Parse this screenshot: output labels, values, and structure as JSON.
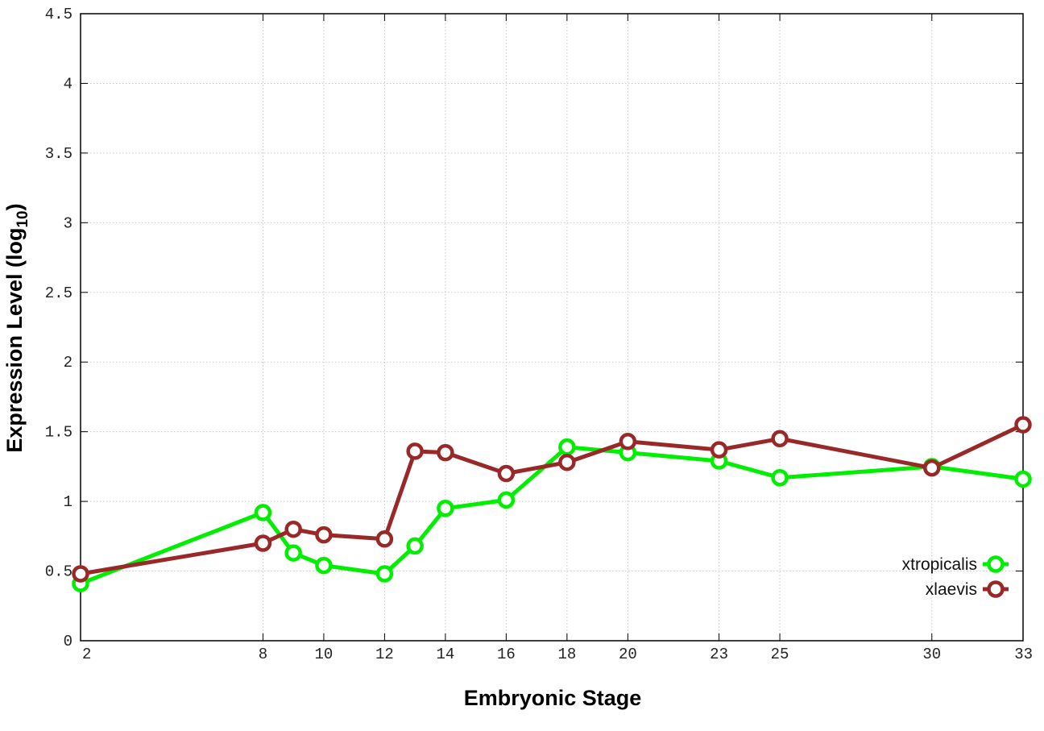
{
  "chart_data": {
    "type": "line",
    "xlabel": "Embryonic Stage",
    "ylabel_main": "Expression Level (log",
    "ylabel_sub": "10",
    "ylabel_close": ")",
    "xlim": [
      2,
      33
    ],
    "ylim": [
      0,
      4.5
    ],
    "grid": true,
    "legend_position": "bottom-right",
    "x_ticks": [
      2,
      8,
      10,
      12,
      14,
      16,
      18,
      20,
      23,
      25,
      30,
      33
    ],
    "x_tick_labels": [
      "2",
      "8",
      "10",
      "12",
      "14",
      "16",
      "18",
      "20",
      "23",
      "25",
      "30",
      "33"
    ],
    "y_ticks": [
      0,
      0.5,
      1,
      1.5,
      2,
      2.5,
      3,
      3.5,
      4,
      4.5
    ],
    "y_tick_labels": [
      "0",
      "0.5",
      "1",
      "1.5",
      "2",
      "2.5",
      "3",
      "3.5",
      "4",
      "4.5"
    ],
    "series": [
      {
        "name": "xtropicalis",
        "color": "#00ee00",
        "x": [
          2,
          8,
          9,
          10,
          12,
          13,
          14,
          16,
          18,
          20,
          23,
          25,
          30,
          33
        ],
        "y": [
          0.41,
          0.92,
          0.63,
          0.54,
          0.48,
          0.68,
          0.95,
          1.01,
          1.39,
          1.35,
          1.29,
          1.17,
          1.25,
          1.16
        ]
      },
      {
        "name": "xlaevis",
        "color": "#992929",
        "x": [
          2,
          8,
          9,
          10,
          12,
          13,
          14,
          16,
          18,
          20,
          23,
          25,
          30,
          33
        ],
        "y": [
          0.48,
          0.7,
          0.8,
          0.76,
          0.73,
          1.36,
          1.35,
          1.2,
          1.28,
          1.43,
          1.37,
          1.45,
          1.24,
          1.55
        ]
      }
    ]
  }
}
